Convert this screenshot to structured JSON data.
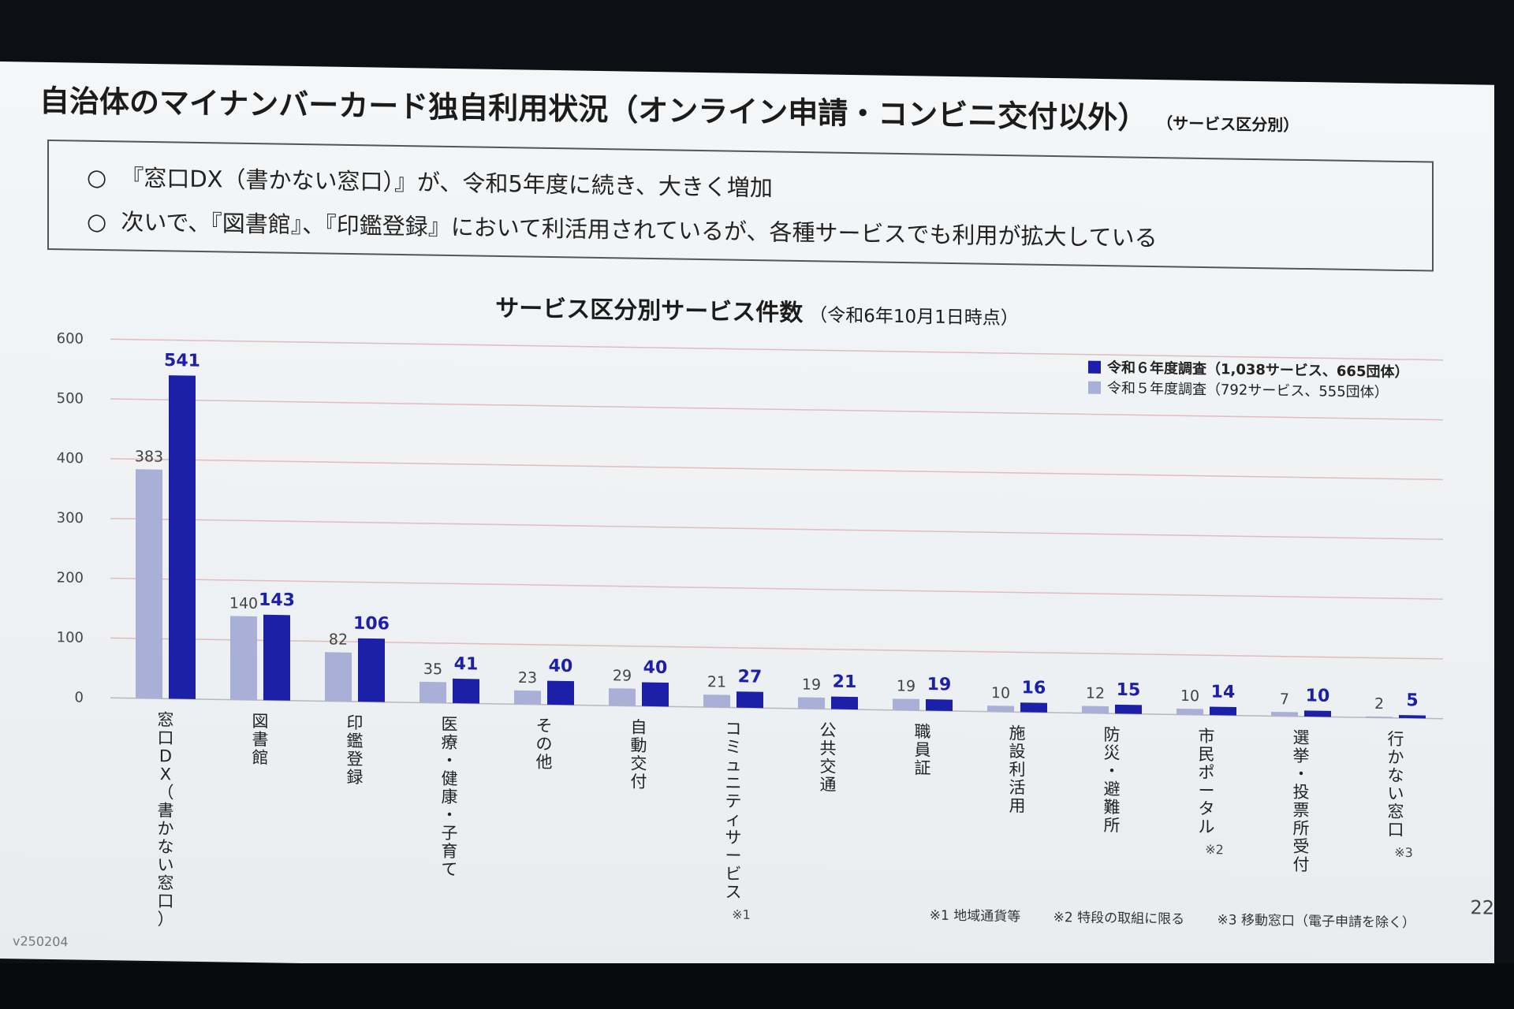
{
  "slide": {
    "title": "自治体のマイナンバーカード独自利用状況（オンライン申請・コンビニ交付以外）",
    "title_note": "（サービス区分別）",
    "bullets": [
      {
        "mark": "○",
        "text": "『窓口DX（書かない窓口）』が、令和5年度に続き、大きく増加"
      },
      {
        "mark": "○",
        "text": "次いで、『図書館』、『印鑑登録』において利活用されているが、各種サービスでも利用が拡大している"
      }
    ],
    "footnotes": [
      "※1 地域通貨等",
      "※2 特段の取組に限る",
      "※3 移動窓口（電子申請を除く）"
    ],
    "version": "v250204",
    "page_number": "22"
  },
  "chart_data": {
    "type": "bar",
    "title": "サービス区分別サービス件数",
    "subtitle": "（令和6年10月1日時点）",
    "categories": [
      "窓口DX（書かない窓口）",
      "図書館",
      "印鑑登録",
      "医療・健康・子育て",
      "その他",
      "自動交付",
      "コミュニティサービス",
      "公共交通",
      "職員証",
      "施設利活用",
      "防災・避難所",
      "市民ポータル",
      "選挙・投票所受付",
      "行かない窓口"
    ],
    "category_notes": [
      "",
      "",
      "",
      "",
      "",
      "",
      "※1",
      "",
      "",
      "",
      "",
      "※2",
      "",
      "※3"
    ],
    "series": [
      {
        "name": "令和５年度調査（792サービス、555団体）",
        "values": [
          383,
          140,
          82,
          35,
          23,
          29,
          21,
          19,
          19,
          10,
          12,
          10,
          7,
          2
        ],
        "color": "#a9b0d8"
      },
      {
        "name": "令和６年度調査（1,038サービス、665団体）",
        "values": [
          541,
          143,
          106,
          41,
          40,
          40,
          27,
          21,
          19,
          16,
          15,
          14,
          10,
          5
        ],
        "color": "#1c1fa8"
      }
    ],
    "yticks": [
      0,
      100,
      200,
      300,
      400,
      500,
      600
    ],
    "ylim": [
      0,
      600
    ],
    "grid": true,
    "legend_position": "top-right"
  }
}
